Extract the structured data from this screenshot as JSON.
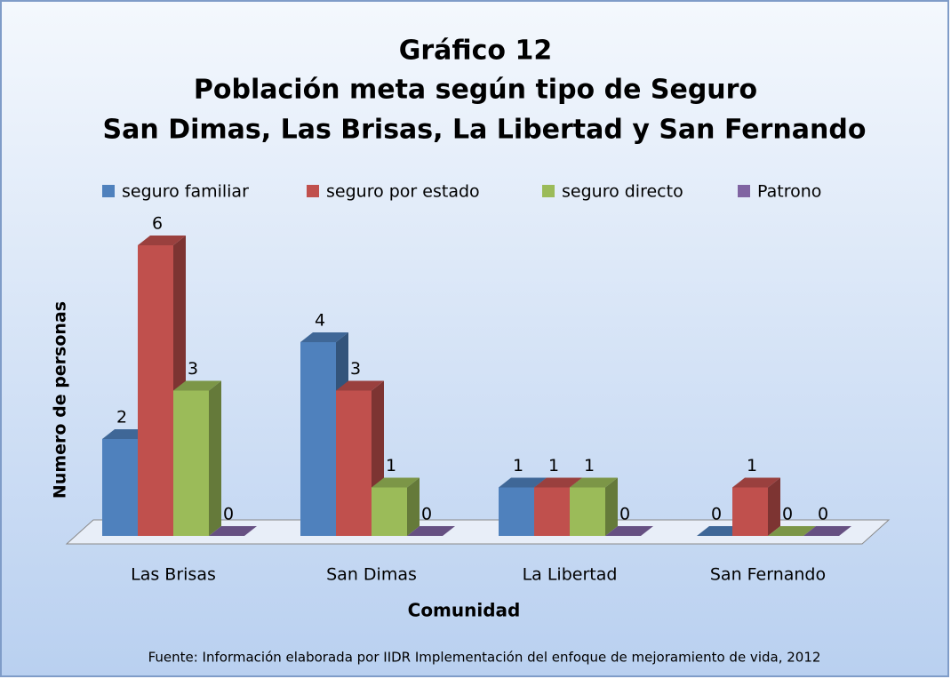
{
  "chart_data": {
    "type": "bar3d",
    "title": [
      "Gráfico 12",
      "Población meta según tipo de  Seguro",
      "San Dimas, Las Brisas, La Libertad y San Fernando"
    ],
    "y_label": "Numero de personas",
    "x_label": "Comunidad",
    "source": "Fuente: Información elaborada por IIDR Implementación del enfoque de mejoramiento de vida, 2012",
    "categories": [
      "Las Brisas",
      "San Dimas",
      "La Libertad",
      "San Fernando"
    ],
    "series": [
      {
        "name": "seguro familiar",
        "color": "#4f81bd",
        "values": [
          2,
          4,
          1,
          0
        ]
      },
      {
        "name": "seguro por estado",
        "color": "#c0504d",
        "values": [
          6,
          3,
          1,
          1
        ]
      },
      {
        "name": "seguro directo",
        "color": "#9bbb59",
        "values": [
          3,
          1,
          1,
          0
        ]
      },
      {
        "name": "Patrono",
        "color": "#8064a2",
        "values": [
          0,
          0,
          0,
          0
        ]
      }
    ],
    "ylim": [
      0,
      6
    ],
    "legend": "top",
    "data_labels": true
  }
}
